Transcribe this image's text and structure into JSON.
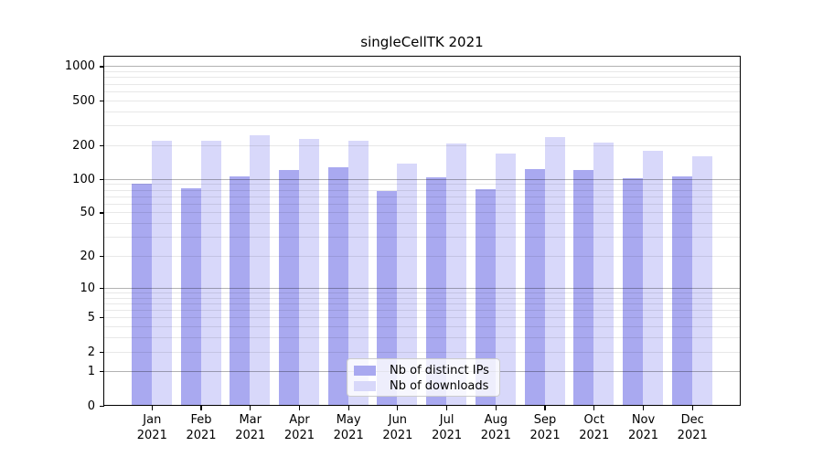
{
  "figure": {
    "title": "singleCellTK 2021"
  },
  "legend": {
    "items": [
      {
        "label": "Nb of distinct IPs",
        "color": "#a9a9f0"
      },
      {
        "label": "Nb of downloads",
        "color": "#d8d8fa"
      }
    ]
  },
  "chart_data": {
    "type": "bar",
    "title": "singleCellTK 2021",
    "yscale": "log1p",
    "ylim": [
      0,
      1250
    ],
    "y_ticks": [
      0,
      1,
      2,
      5,
      10,
      20,
      50,
      100,
      200,
      500,
      1000
    ],
    "grid": "horizontal gridlines on: major at 1,10,100,1000 (darker), minor at 2-9,20-90,200-900 (faint)",
    "legend_position": "lower center",
    "categories": [
      "Jan 2021",
      "Feb 2021",
      "Mar 2021",
      "Apr 2021",
      "May 2021",
      "Jun 2021",
      "Jul 2021",
      "Aug 2021",
      "Sep 2021",
      "Oct 2021",
      "Nov 2021",
      "Dec 2021"
    ],
    "series": [
      {
        "name": "Nb of distinct IPs",
        "color": "#a9a9f0",
        "values": [
          93,
          84,
          108,
          122,
          129,
          79,
          106,
          83,
          125,
          123,
          103,
          107
        ]
      },
      {
        "name": "Nb of downloads",
        "color": "#d8d8fa",
        "values": [
          224,
          224,
          250,
          233,
          222,
          139,
          209,
          172,
          242,
          213,
          180,
          161
        ]
      }
    ]
  }
}
